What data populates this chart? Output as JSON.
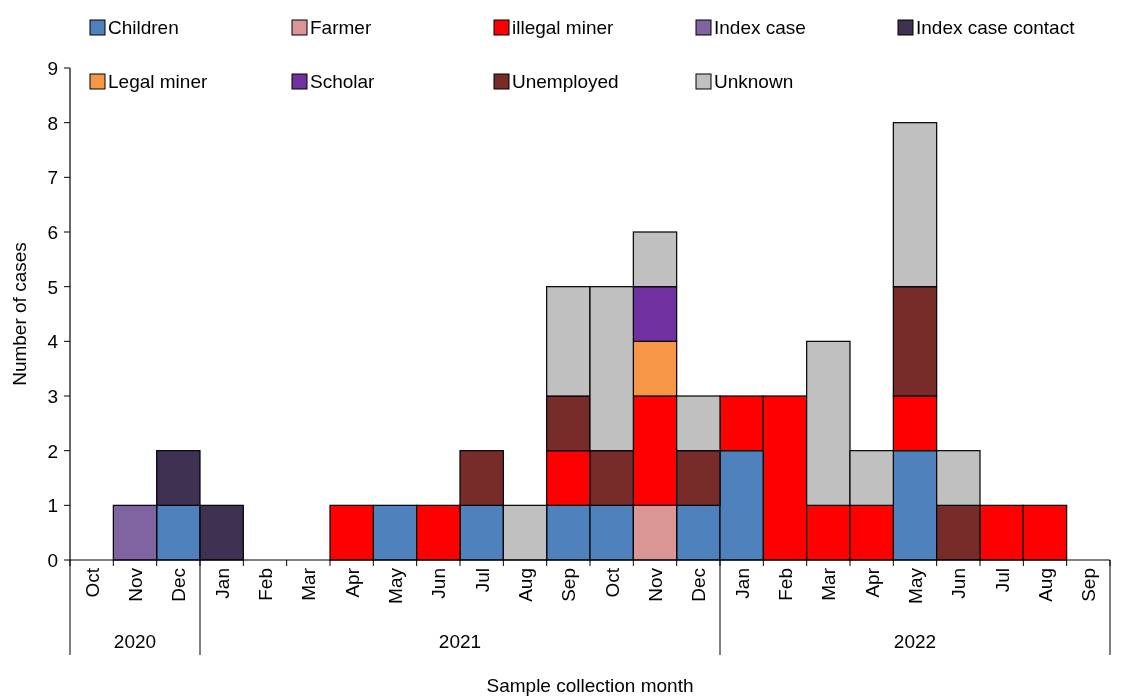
{
  "chart_data": {
    "type": "bar",
    "stacked": true,
    "xlabel": "Sample collection month",
    "ylabel": "Number of cases",
    "categories": [
      "Oct",
      "Nov",
      "Dec",
      "Jan",
      "Feb",
      "Mar",
      "Apr",
      "May",
      "Jun",
      "Jul",
      "Aug",
      "Sep",
      "Oct",
      "Nov",
      "Dec",
      "Jan",
      "Feb",
      "Mar",
      "Apr",
      "May",
      "Jun",
      "Jul",
      "Aug",
      "Sep"
    ],
    "series": [
      {
        "name": "Children",
        "color": "#4f81bd",
        "values": [
          0,
          0,
          1,
          0,
          0,
          0,
          0,
          1,
          0,
          1,
          0,
          1,
          1,
          0,
          1,
          2,
          0,
          0,
          0,
          2,
          0,
          0,
          0,
          0
        ]
      },
      {
        "name": "Farmer",
        "color": "#da9694",
        "values": [
          0,
          0,
          0,
          0,
          0,
          0,
          0,
          0,
          0,
          0,
          0,
          0,
          0,
          1,
          0,
          0,
          0,
          0,
          0,
          0,
          0,
          0,
          0,
          0
        ]
      },
      {
        "name": "illegal miner",
        "color": "#ff0000",
        "values": [
          0,
          0,
          0,
          0,
          0,
          0,
          1,
          0,
          1,
          0,
          0,
          1,
          0,
          2,
          0,
          1,
          3,
          1,
          1,
          1,
          0,
          1,
          1,
          0
        ]
      },
      {
        "name": "Index case",
        "color": "#8064a2",
        "values": [
          0,
          1,
          0,
          0,
          0,
          0,
          0,
          0,
          0,
          0,
          0,
          0,
          0,
          0,
          0,
          0,
          0,
          0,
          0,
          0,
          0,
          0,
          0,
          0
        ]
      },
      {
        "name": "Index case contact",
        "color": "#3f3151",
        "values": [
          0,
          0,
          1,
          1,
          0,
          0,
          0,
          0,
          0,
          0,
          0,
          0,
          0,
          0,
          0,
          0,
          0,
          0,
          0,
          0,
          0,
          0,
          0,
          0
        ]
      },
      {
        "name": "Legal miner",
        "color": "#f79646",
        "values": [
          0,
          0,
          0,
          0,
          0,
          0,
          0,
          0,
          0,
          0,
          0,
          0,
          0,
          1,
          0,
          0,
          0,
          0,
          0,
          0,
          0,
          0,
          0,
          0
        ]
      },
      {
        "name": "Scholar",
        "color": "#7030a0",
        "values": [
          0,
          0,
          0,
          0,
          0,
          0,
          0,
          0,
          0,
          0,
          0,
          0,
          0,
          1,
          0,
          0,
          0,
          0,
          0,
          0,
          0,
          0,
          0,
          0
        ]
      },
      {
        "name": "Unemployed",
        "color": "#772c2a",
        "values": [
          0,
          0,
          0,
          0,
          0,
          0,
          0,
          0,
          0,
          1,
          0,
          1,
          1,
          0,
          1,
          0,
          0,
          0,
          0,
          2,
          1,
          0,
          0,
          0
        ]
      },
      {
        "name": "Unknown",
        "color": "#c0c0c0",
        "values": [
          0,
          0,
          0,
          0,
          0,
          0,
          0,
          0,
          0,
          0,
          1,
          2,
          3,
          1,
          1,
          0,
          0,
          3,
          1,
          3,
          1,
          0,
          0,
          0
        ]
      }
    ],
    "ylim": [
      0,
      9
    ],
    "yticks": [
      0,
      1,
      2,
      3,
      4,
      5,
      6,
      7,
      8,
      9
    ],
    "grid": false,
    "legend": "top",
    "annotations": [
      "2020",
      "2021",
      "2022"
    ]
  }
}
